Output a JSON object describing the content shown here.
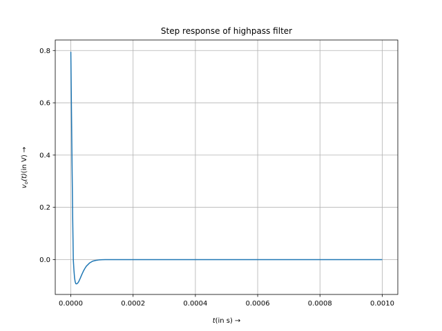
{
  "chart_data": {
    "type": "line",
    "title": "Step response of highpass filter",
    "xlabel": {
      "var": "t",
      "unit": "(in s)",
      "arrow": "→"
    },
    "ylabel": {
      "var": "v",
      "sub": "o",
      "arg": "(t)",
      "unit": "(in V)",
      "arrow": "→"
    },
    "xlim": [
      -5e-05,
      0.00105
    ],
    "ylim": [
      -0.1333,
      0.8403
    ],
    "xticks": [
      0.0,
      0.0002,
      0.0004,
      0.0006,
      0.0008,
      0.001
    ],
    "xtick_labels": [
      "0.0000",
      "0.0002",
      "0.0004",
      "0.0006",
      "0.0008",
      "0.0010"
    ],
    "yticks": [
      0.0,
      0.2,
      0.4,
      0.6,
      0.8
    ],
    "ytick_labels": [
      "0.0",
      "0.2",
      "0.4",
      "0.6",
      "0.8"
    ],
    "grid": true,
    "line_color": "#1f77b4",
    "series": [
      {
        "x": [
          0.0,
          2e-06,
          4e-06,
          6e-06,
          8e-06,
          1e-05,
          1.2e-05,
          1.4e-05,
          1.6e-05,
          1.8e-05,
          2e-05,
          2.2e-05,
          2.5e-05,
          3e-05,
          3.5e-05,
          4e-05,
          4.5e-05,
          5e-05,
          6e-05,
          7e-05,
          8e-05,
          9e-05,
          0.0001,
          0.00011,
          0.00012,
          0.00013,
          0.00015,
          0.0002,
          0.0003,
          0.0004,
          0.0005,
          0.0006,
          0.0007,
          0.0008,
          0.0009,
          0.001
        ],
        "y": [
          0.795,
          0.58,
          0.36,
          0.16,
          0.0,
          -0.04,
          -0.07,
          -0.085,
          -0.092,
          -0.093,
          -0.092,
          -0.09,
          -0.085,
          -0.072,
          -0.058,
          -0.045,
          -0.034,
          -0.025,
          -0.013,
          -0.006,
          -0.003,
          -0.0012,
          -0.0005,
          -0.0002,
          -0.0001,
          0.0,
          0.0,
          0.0,
          0.0,
          0.0,
          0.0,
          0.0,
          0.0,
          0.0,
          0.0,
          0.0
        ]
      }
    ]
  }
}
